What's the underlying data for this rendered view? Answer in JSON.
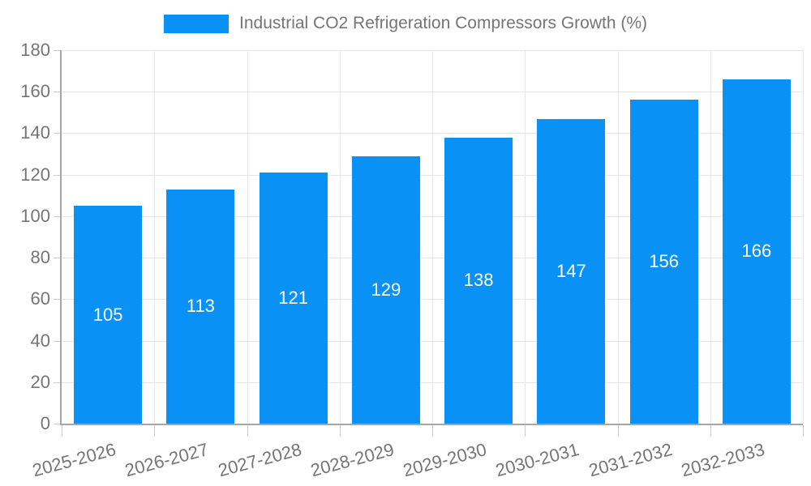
{
  "chart_data": {
    "type": "bar",
    "title": "Industrial CO2 Refrigeration Compressors Growth (%)",
    "legend": {
      "label": "Industrial CO2 Refrigeration Compressors Growth (%)",
      "position": "top-center"
    },
    "categories": [
      "2025-2026",
      "2026-2027",
      "2027-2028",
      "2028-2029",
      "2029-2030",
      "2030-2031",
      "2031-2032",
      "2032-2033"
    ],
    "values": [
      105,
      113,
      121,
      129,
      138,
      147,
      156,
      166
    ],
    "xlabel": "",
    "ylabel": "",
    "ylim": [
      0,
      180
    ],
    "yticks": [
      0,
      20,
      40,
      60,
      80,
      100,
      120,
      140,
      160,
      180
    ],
    "ytick_labels": [
      "0",
      "20",
      "40",
      "60",
      "80",
      "100",
      "120",
      "140",
      "160",
      "180"
    ],
    "grid": true,
    "bar_color": "#0a91f5",
    "bar_label_color": "#ffffff",
    "axis_text_color": "#757575",
    "gridline_color": "#e6e6e6",
    "axis_line_color": "#a6a6a6",
    "tick_color": "#cccccc",
    "x_label_rotation_deg": -15
  }
}
